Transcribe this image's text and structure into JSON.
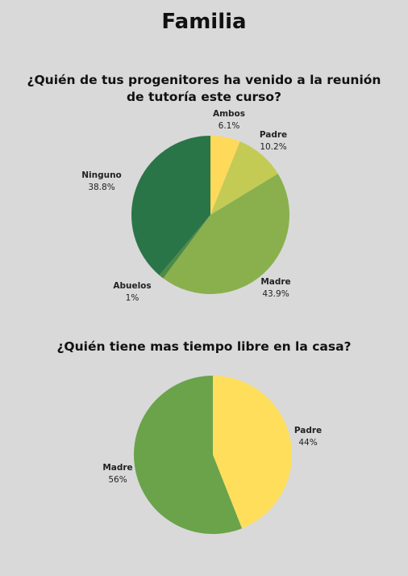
{
  "page": {
    "title": "Familia"
  },
  "chart_data": [
    {
      "type": "pie",
      "title": "¿Quién de tus progenitores ha venido a la reunión de tutoría este curso?",
      "slices": [
        {
          "label": "Ambos",
          "value": 6.1,
          "display": "6.1%",
          "color": "#ffd95a"
        },
        {
          "label": "Padre",
          "value": 10.2,
          "display": "10.2%",
          "color": "#c3cb55"
        },
        {
          "label": "Madre",
          "value": 43.9,
          "display": "43.9%",
          "color": "#8ab04e"
        },
        {
          "label": "Abuelos",
          "value": 1,
          "display": "1%",
          "color": "#4e8a45"
        },
        {
          "label": "Ninguno",
          "value": 38.8,
          "display": "38.8%",
          "color": "#2a7548"
        }
      ]
    },
    {
      "type": "pie",
      "title": "¿Quién tiene mas tiempo libre en la casa?",
      "slices": [
        {
          "label": "Padre",
          "value": 44,
          "display": "44%",
          "color": "#ffde5c"
        },
        {
          "label": "Madre",
          "value": 56,
          "display": "56%",
          "color": "#6aa34a"
        }
      ]
    }
  ]
}
